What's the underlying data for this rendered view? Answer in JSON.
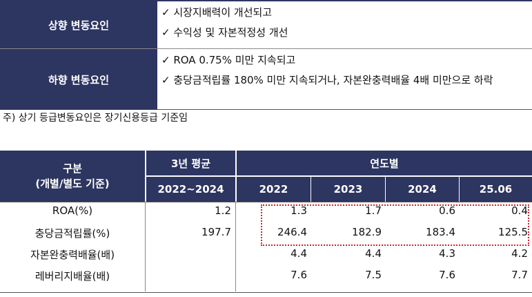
{
  "factors": [
    {
      "label": "상향 변동요인",
      "items": [
        "✓ 시장지배력이 개선되고",
        "✓ 수익성 및 자본적정성 개선"
      ]
    },
    {
      "label": "하향 변동요인",
      "items": [
        "✓ ROA 0.75% 미만 지속되고",
        "✓ 충당금적립률 180% 미만 지속되거나, 자본완충력배율 4배 미만으로 하락"
      ]
    }
  ],
  "note": "주) 상기 등급변동요인은 장기신용등급 기준임",
  "table": {
    "header": {
      "category": [
        "구분",
        "(개별/별도 기준)"
      ],
      "avg": "3년 평균",
      "avg_period": "2022~2024",
      "yearly": "연도별",
      "years": [
        "2022",
        "2023",
        "2024",
        "25.06"
      ]
    },
    "rows": [
      {
        "label": "ROA(%)",
        "avg": "1.2",
        "values": [
          "1.3",
          "1.7",
          "0.6",
          "0.4"
        ]
      },
      {
        "label": "충당금적립률(%)",
        "avg": "197.7",
        "values": [
          "246.4",
          "182.9",
          "183.4",
          "125.5"
        ]
      },
      {
        "label": "자본완충력배율(배)",
        "values": [
          "4.4",
          "4.4",
          "4.3",
          "4.2"
        ]
      },
      {
        "label": "레버리지배율(배)",
        "values": [
          "7.6",
          "7.5",
          "7.6",
          "7.7"
        ]
      }
    ]
  }
}
